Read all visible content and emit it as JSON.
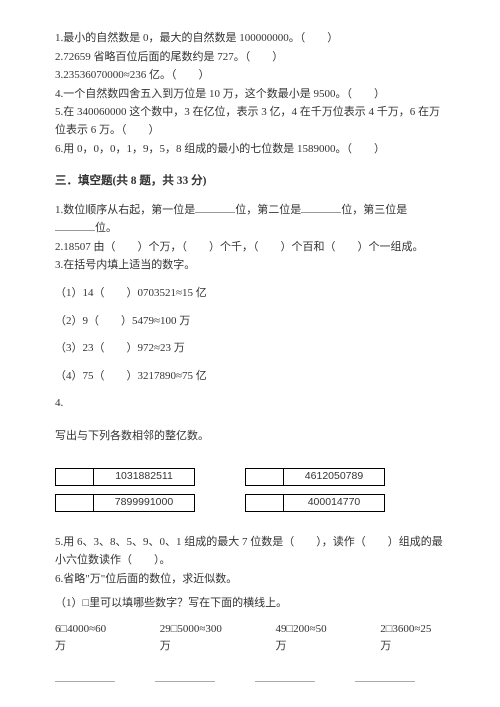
{
  "top": {
    "q1": "1.最小的自然数是 0，最大的自然数是 100000000。（　　）",
    "q2": "2.72659 省略百位后面的尾数约是 727。（　　）",
    "q3": "3.23536070000≈236 亿。（　　）",
    "q4": "4.一个自然数四舍五入到万位是 10 万，这个数最小是 9500。（　　）",
    "q5": "5.在 340060000 这个数中，3 在亿位，表示 3 亿，4 在千万位表示 4 千万，6 在万位表示 6 万。（　　）",
    "q6": "6.用 0，0，0，1，9，5，8 组成的最小的七位数是 1589000。（　　）"
  },
  "section3": {
    "title": "三．填空题(共 8 题，共 33 分)",
    "q1a": "1.数位顺序从右起，第一位是",
    "q1b": "位，第二位是",
    "q1c": "位，第三位是",
    "q1d": "位。",
    "q2": "2.18507 由（　　）个万，（　　）个千，（　　）个百和（　　）个一组成。",
    "q3": "3.在括号内填上适当的数字。",
    "s1": "（1）14（　　）0703521≈15 亿",
    "s2": "（2）9（　　）5479≈100 万",
    "s3": "（3）23（　　）972≈23 万",
    "s4": "（4）75（　　）3217890≈75 亿",
    "q4": "4.",
    "q4text": "写出与下列各数相邻的整亿数。",
    "box1": "1031882511",
    "box2": "4612050789",
    "box3": "7899991000",
    "box4": "400014770",
    "q5": "5.用 6、3、8、5、9、0、1 组成的最大 7 位数是（　　），读作（　　）组成的最小六位数读作（　　）。",
    "q6": "6.省略\"万\"位后面的数位，求近似数。",
    "q6sub": "（1）□里可以填哪些数字？写在下面的横线上。",
    "c1": "6□4000≈60 万",
    "c2": "29□5000≈300 万",
    "c3": "49□200≈50 万",
    "c4": "2□3600≈25 万"
  }
}
